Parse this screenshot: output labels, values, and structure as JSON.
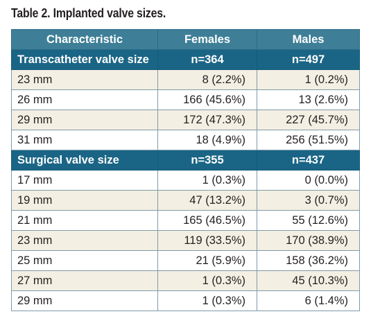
{
  "caption": "Table 2. Implanted valve sizes.",
  "header": {
    "characteristic": "Characteristic",
    "females": "Females",
    "males": "Males"
  },
  "transcatheter": {
    "label": "Transcatheter valve size",
    "females_n": "n=364",
    "males_n": "n=497",
    "rows": [
      {
        "size": "23 mm",
        "females": "8 (2.2%)",
        "males": "1 (0.2%)"
      },
      {
        "size": "26 mm",
        "females": "166 (45.6%)",
        "males": "13 (2.6%)"
      },
      {
        "size": "29 mm",
        "females": "172 (47.3%)",
        "males": "227 (45.7%)"
      },
      {
        "size": "31 mm",
        "females": "18 (4.9%)",
        "males": "256 (51.5%)"
      }
    ]
  },
  "surgical": {
    "label": "Surgical valve size",
    "females_n": "n=355",
    "males_n": "n=437",
    "rows": [
      {
        "size": "17 mm",
        "females": "1 (0.3%)",
        "males": "0 (0.0%)"
      },
      {
        "size": "19 mm",
        "females": "47 (13.2%)",
        "males": "3 (0.7%)"
      },
      {
        "size": "21 mm",
        "females": "165 (46.5%)",
        "males": "55 (12.6%)"
      },
      {
        "size": "23 mm",
        "females": "119 (33.5%)",
        "males": "170 (38.9%)"
      },
      {
        "size": "25 mm",
        "females": "21 (5.9%)",
        "males": "158 (36.2%)"
      },
      {
        "size": "27 mm",
        "females": "1 (0.3%)",
        "males": "45 (10.3%)"
      },
      {
        "size": "29 mm",
        "females": "1 (0.3%)",
        "males": "6 (1.4%)"
      }
    ]
  },
  "colors": {
    "header_bg": "#3e7f97",
    "section_bg": "#1a6585",
    "row_alt_bg": "#f3efe2",
    "border": "#7f9aa8"
  }
}
